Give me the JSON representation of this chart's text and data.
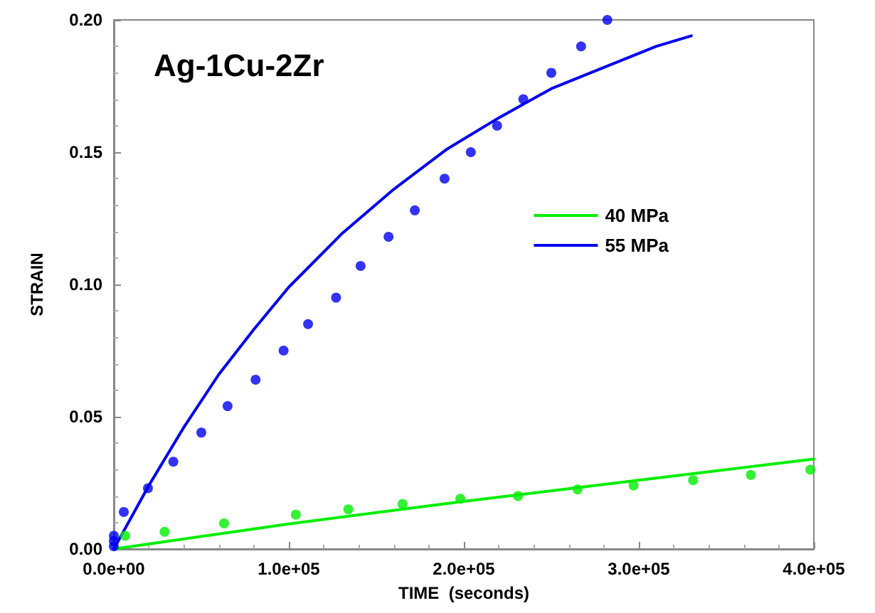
{
  "chart_data": {
    "type": "line",
    "title": "Ag-1Cu-2Zr",
    "xlabel": "TIME  (seconds)",
    "ylabel": "STRAIN",
    "xlim": [
      0,
      400000
    ],
    "ylim": [
      0,
      0.2
    ],
    "xticks": [
      {
        "value": 0,
        "label": "0.0e+00"
      },
      {
        "value": 100000,
        "label": "1.0e+05"
      },
      {
        "value": 200000,
        "label": "2.0e+05"
      },
      {
        "value": 300000,
        "label": "3.0e+05"
      },
      {
        "value": 400000,
        "label": "4.0e+05"
      }
    ],
    "yticks": [
      {
        "value": 0,
        "label": "0.00"
      },
      {
        "value": 0.05,
        "label": "0.05"
      },
      {
        "value": 0.1,
        "label": "0.10"
      },
      {
        "value": 0.15,
        "label": "0.15"
      },
      {
        "value": 0.2,
        "label": "0.20"
      }
    ],
    "grid": false,
    "legend": "right",
    "series": [
      {
        "name": "40 MPa",
        "color": "#00ee00",
        "marker": "none",
        "x": [
          0,
          100000,
          200000,
          300000,
          400000
        ],
        "values": [
          0,
          0.0095,
          0.018,
          0.026,
          0.034
        ]
      },
      {
        "name": "55 MPa",
        "color": "#0000ee",
        "marker": "none",
        "x": [
          0,
          20000,
          40000,
          60000,
          80000,
          100000,
          130000,
          160000,
          190000,
          220000,
          250000,
          280000,
          310000,
          330000
        ],
        "values": [
          0,
          0.024,
          0.046,
          0.066,
          0.083,
          0.099,
          0.119,
          0.136,
          0.151,
          0.163,
          0.174,
          0.182,
          0.19,
          0.194
        ]
      },
      {
        "type": "scatter",
        "color": "#00ee00",
        "marker": "circle",
        "x": [
          6500,
          29000,
          63000,
          104000,
          134000,
          165000,
          198000,
          231000,
          265000,
          297000,
          331000,
          364000,
          398000
        ],
        "values": [
          0.005,
          0.0065,
          0.0097,
          0.013,
          0.015,
          0.017,
          0.019,
          0.02,
          0.0225,
          0.024,
          0.026,
          0.028,
          0.03
        ]
      },
      {
        "type": "scatter",
        "color": "#0000ee",
        "marker": "circle",
        "x": [
          0,
          0,
          0,
          5700,
          19500,
          34000,
          50000,
          65000,
          81000,
          97000,
          111000,
          127000,
          141000,
          157000,
          172000,
          189000,
          204000,
          219000,
          234000,
          250000,
          267000,
          282000
        ],
        "values": [
          0.001,
          0.003,
          0.005,
          0.014,
          0.023,
          0.033,
          0.044,
          0.054,
          0.064,
          0.075,
          0.085,
          0.095,
          0.107,
          0.118,
          0.128,
          0.14,
          0.15,
          0.16,
          0.17,
          0.18,
          0.19,
          0.2
        ]
      }
    ]
  }
}
